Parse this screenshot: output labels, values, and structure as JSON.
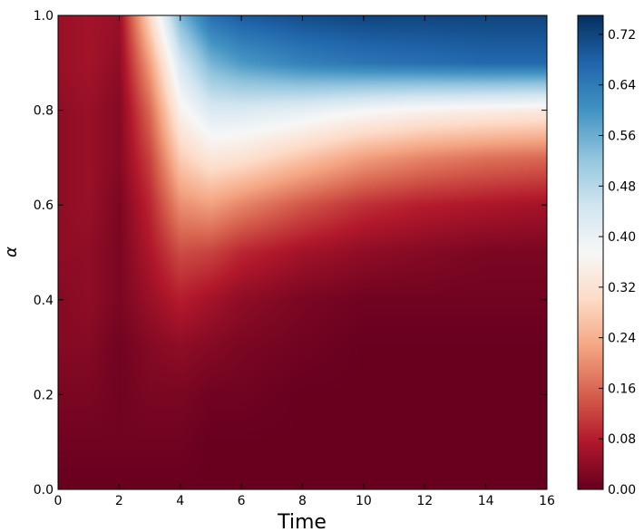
{
  "chart_data": {
    "type": "heatmap",
    "xlabel": "Time",
    "ylabel": "α",
    "xlim": [
      0,
      16
    ],
    "ylim": [
      0.0,
      1.0
    ],
    "x_ticks": [
      0,
      2,
      4,
      6,
      8,
      10,
      12,
      14,
      16
    ],
    "y_ticks": [
      0.0,
      0.2,
      0.4,
      0.6,
      0.8,
      1.0
    ],
    "y_tick_labels": [
      "0.0",
      "0.2",
      "0.4",
      "0.6",
      "0.8",
      "1.0"
    ],
    "colorbar": {
      "colormap": "RdBu",
      "range": [
        0.0,
        0.75
      ],
      "ticks": [
        0.0,
        0.08,
        0.16,
        0.24,
        0.32,
        0.4,
        0.48,
        0.56,
        0.64,
        0.72
      ],
      "tick_labels": [
        "0.00",
        "0.08",
        "0.16",
        "0.24",
        "0.32",
        "0.40",
        "0.48",
        "0.56",
        "0.64",
        "0.72"
      ]
    },
    "grid": false,
    "samples": {
      "alpha": [
        1.0,
        0.9,
        0.8,
        0.7,
        0.6,
        0.5,
        0.4,
        0.3,
        0.2,
        0.1,
        0.0
      ],
      "time": [
        0,
        1,
        2,
        3,
        4,
        5,
        6,
        8,
        10,
        12,
        14,
        16
      ],
      "values": [
        [
          0.05,
          0.06,
          0.05,
          0.3,
          0.55,
          0.66,
          0.69,
          0.71,
          0.72,
          0.72,
          0.72,
          0.72
        ],
        [
          0.05,
          0.06,
          0.04,
          0.22,
          0.44,
          0.55,
          0.59,
          0.63,
          0.65,
          0.66,
          0.67,
          0.67
        ],
        [
          0.04,
          0.05,
          0.03,
          0.16,
          0.36,
          0.43,
          0.43,
          0.41,
          0.38,
          0.36,
          0.35,
          0.34
        ],
        [
          0.04,
          0.05,
          0.03,
          0.12,
          0.28,
          0.33,
          0.32,
          0.27,
          0.22,
          0.19,
          0.17,
          0.16
        ],
        [
          0.04,
          0.05,
          0.02,
          0.09,
          0.2,
          0.22,
          0.19,
          0.14,
          0.1,
          0.08,
          0.07,
          0.06
        ],
        [
          0.04,
          0.04,
          0.02,
          0.07,
          0.13,
          0.12,
          0.09,
          0.06,
          0.04,
          0.03,
          0.02,
          0.02
        ],
        [
          0.03,
          0.04,
          0.02,
          0.05,
          0.08,
          0.06,
          0.04,
          0.02,
          0.01,
          0.01,
          0.01,
          0.01
        ],
        [
          0.03,
          0.03,
          0.01,
          0.03,
          0.04,
          0.03,
          0.02,
          0.01,
          0.0,
          0.0,
          0.0,
          0.0
        ],
        [
          0.02,
          0.02,
          0.01,
          0.02,
          0.02,
          0.01,
          0.01,
          0.0,
          0.0,
          0.0,
          0.0,
          0.0
        ],
        [
          0.01,
          0.01,
          0.01,
          0.01,
          0.01,
          0.0,
          0.0,
          0.0,
          0.0,
          0.0,
          0.0,
          0.0
        ],
        [
          0.0,
          0.0,
          0.0,
          0.0,
          0.0,
          0.0,
          0.0,
          0.0,
          0.0,
          0.0,
          0.0,
          0.0
        ]
      ]
    }
  }
}
